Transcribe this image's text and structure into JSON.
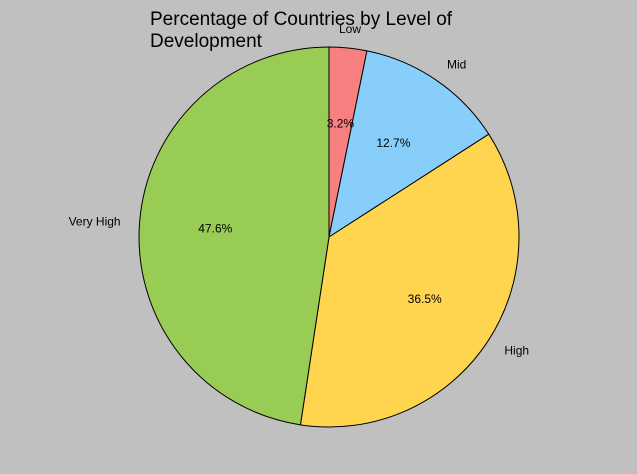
{
  "chart_data": {
    "type": "pie",
    "title": "Percentage of Countries by Level of Development",
    "start_angle_deg": 90,
    "direction": "clockwise",
    "slices": [
      {
        "label": "Low",
        "value": 3.2,
        "pct_label": "3.2%",
        "color": "#f88080"
      },
      {
        "label": "Mid",
        "value": 12.7,
        "pct_label": "12.7%",
        "color": "#87cefa"
      },
      {
        "label": "High",
        "value": 36.5,
        "pct_label": "36.5%",
        "color": "#ffd54f"
      },
      {
        "label": "Very High",
        "value": 47.6,
        "pct_label": "47.6%",
        "color": "#99cc55"
      }
    ],
    "edge_color": "#000000",
    "background": "#c0c0c0"
  }
}
